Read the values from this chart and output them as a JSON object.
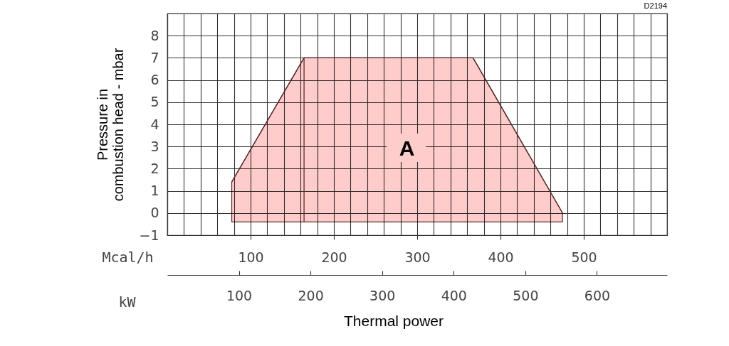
{
  "chart_data": {
    "type": "line",
    "xlabel": "kW",
    "x2label": "Mcal/h",
    "ylabel": "Pressure in\ncombustion head - mbar",
    "xlim": [
      0,
      698
    ],
    "xticks": [
      100,
      200,
      300,
      400,
      500,
      600
    ],
    "x2lim": [
      0,
      600
    ],
    "x2ticks": [
      {
        "value": 0,
        "label": null
      },
      {
        "value": 20,
        "label": null
      },
      {
        "value": 40,
        "label": null
      },
      {
        "value": 60,
        "label": null
      },
      {
        "value": 80,
        "label": null
      },
      100,
      {
        "value": 120,
        "label": null
      },
      {
        "value": 140,
        "label": null
      },
      {
        "value": 160,
        "label": null
      },
      {
        "value": 180,
        "label": null
      },
      200,
      {
        "value": 220,
        "label": null
      },
      {
        "value": 240,
        "label": null
      },
      {
        "value": 260,
        "label": null
      },
      {
        "value": 280,
        "label": null
      },
      300,
      {
        "value": 320,
        "label": null
      },
      {
        "value": 340,
        "label": null
      },
      {
        "value": 360,
        "label": null
      },
      {
        "value": 380,
        "label": null
      },
      400,
      {
        "value": 420,
        "label": null
      },
      {
        "value": 440,
        "label": null
      },
      {
        "value": 460,
        "label": null
      },
      {
        "value": 480,
        "label": null
      },
      500,
      {
        "value": 520,
        "label": null
      },
      {
        "value": 540,
        "label": null
      },
      {
        "value": 560,
        "label": null
      },
      {
        "value": 580,
        "label": null
      },
      {
        "value": 600,
        "label": null
      }
    ],
    "ylim": [
      -1,
      9
    ],
    "yticks": [
      -1,
      0,
      1,
      2,
      3,
      4,
      5,
      6,
      7,
      8,
      {
        "value": 9,
        "label": null
      }
    ],
    "grid": true,
    "series": [
      {
        "color": "#5a2d2d",
        "x": [
          90,
          191,
          427,
          552
        ],
        "values": [
          1.4,
          7,
          7,
          0
        ],
        "lower": [
          -0.4,
          -0.4,
          -0.4,
          -0.4
        ],
        "upper": [
          1.4,
          7,
          7,
          0
        ]
      },
      {
        "color": "#5a2d2d",
        "x": [
          191,
          191
        ],
        "values": [
          -0.4,
          7
        ]
      }
    ],
    "annotations": [
      "A",
      "D2194",
      "Thermal power"
    ]
  }
}
